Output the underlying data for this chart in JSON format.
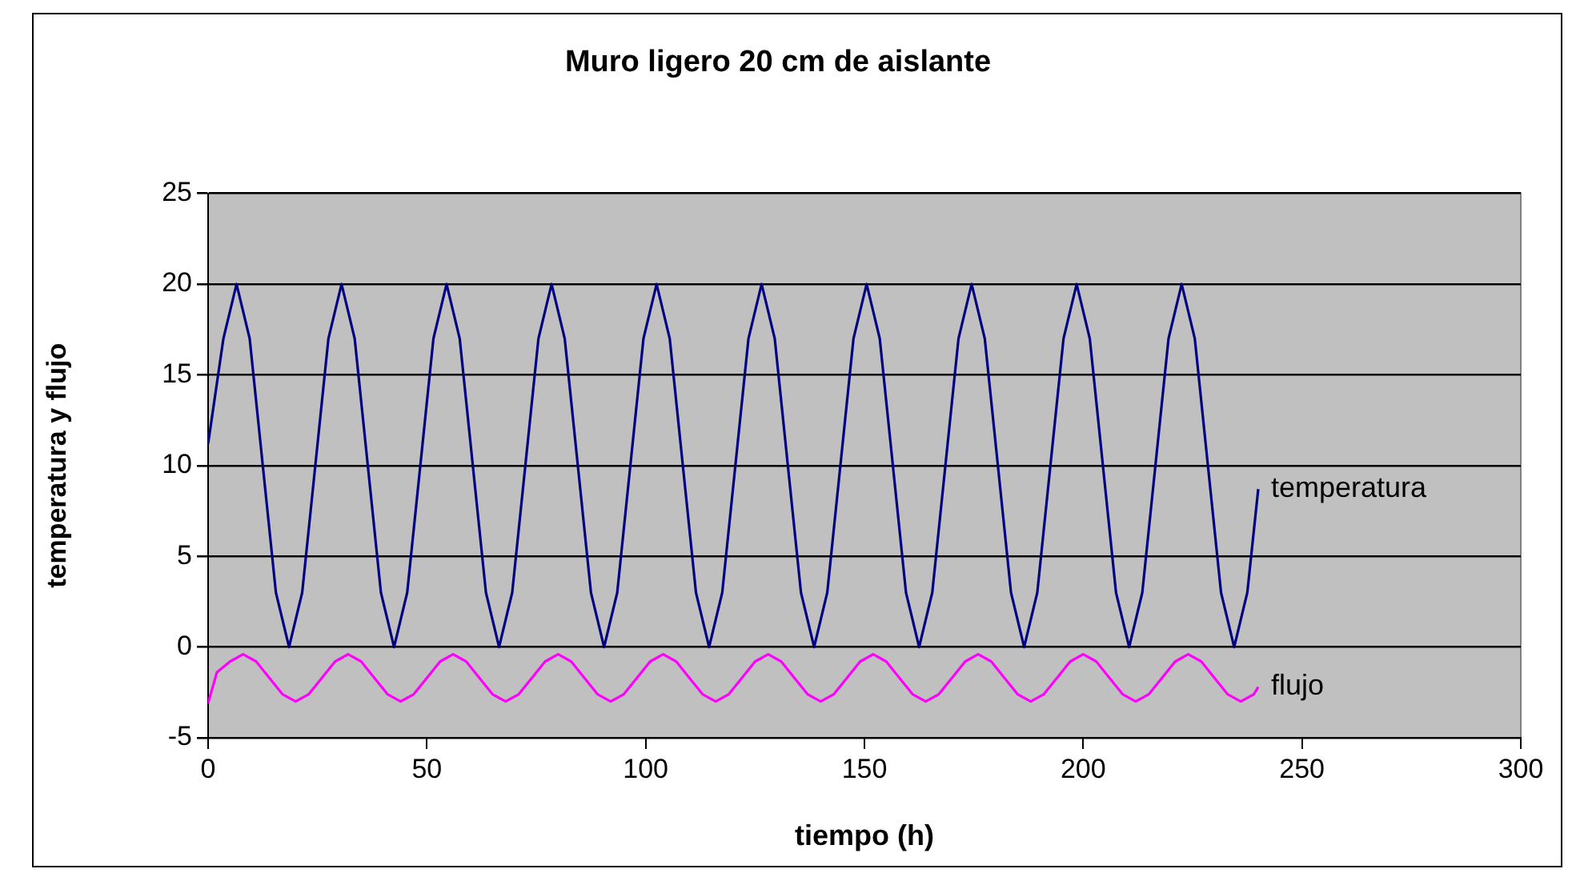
{
  "chart_data": {
    "type": "line",
    "title": "Muro ligero 20 cm de aislante",
    "xlabel": "tiempo (h)",
    "ylabel": "temperatura y flujo",
    "xlim": [
      0,
      300
    ],
    "xticks": [
      0,
      50,
      100,
      150,
      200,
      250,
      300
    ],
    "ylim": [
      -5,
      25
    ],
    "yticks": [
      -5,
      0,
      5,
      10,
      15,
      20,
      25
    ],
    "grid": "y",
    "legend": false,
    "marker": "none",
    "line_style": "solid",
    "series": [
      {
        "name": "temperatura",
        "color": "#000080",
        "x": [
          0,
          3.5,
          6.5,
          9.5,
          12.5,
          15.5,
          18.5,
          21.5,
          24.5,
          27.5,
          30.5,
          33.5,
          36.5,
          39.5,
          42.5,
          45.5,
          48.5,
          51.5,
          54.5,
          57.5,
          60.5,
          63.5,
          66.5,
          69.5,
          72.5,
          75.5,
          78.5,
          81.5,
          84.5,
          87.5,
          90.5,
          93.5,
          96.5,
          99.5,
          102.5,
          105.5,
          108.5,
          111.5,
          114.5,
          117.5,
          120.5,
          123.5,
          126.5,
          129.5,
          132.5,
          135.5,
          138.5,
          141.5,
          144.5,
          147.5,
          150.5,
          153.5,
          156.5,
          159.5,
          162.5,
          165.5,
          168.5,
          171.5,
          174.5,
          177.5,
          180.5,
          183.5,
          186.5,
          189.5,
          192.5,
          195.5,
          198.5,
          201.5,
          204.5,
          207.5,
          210.5,
          213.5,
          216.5,
          219.5,
          222.5,
          225.5,
          228.5,
          231.5,
          234.5,
          237.5,
          240
        ],
        "values": [
          11.2,
          17,
          20,
          17,
          10,
          3,
          0,
          3,
          10,
          17,
          20,
          17,
          10,
          3,
          0,
          3,
          10,
          17,
          20,
          17,
          10,
          3,
          0,
          3,
          10,
          17,
          20,
          17,
          10,
          3,
          0,
          3,
          10,
          17,
          20,
          17,
          10,
          3,
          0,
          3,
          10,
          17,
          20,
          17,
          10,
          3,
          0,
          3,
          10,
          17,
          20,
          17,
          10,
          3,
          0,
          3,
          10,
          17,
          20,
          17,
          10,
          3,
          0,
          3,
          10,
          17,
          20,
          17,
          10,
          3,
          0,
          3,
          10,
          17,
          20,
          17,
          10,
          3,
          0,
          3,
          8.7
        ]
      },
      {
        "name": "flujo",
        "color": "#ff00ff",
        "x": [
          0,
          2,
          5,
          8,
          11,
          14,
          17,
          20,
          23,
          26,
          29,
          32,
          35,
          38,
          41,
          44,
          47,
          50,
          53,
          56,
          59,
          62,
          65,
          68,
          71,
          74,
          77,
          80,
          83,
          86,
          89,
          92,
          95,
          98,
          101,
          104,
          107,
          110,
          113,
          116,
          119,
          122,
          125,
          128,
          131,
          134,
          137,
          140,
          143,
          146,
          149,
          152,
          155,
          158,
          161,
          164,
          167,
          170,
          173,
          176,
          179,
          182,
          185,
          188,
          191,
          194,
          197,
          200,
          203,
          206,
          209,
          212,
          215,
          218,
          221,
          224,
          227,
          230,
          233,
          236,
          239,
          240
        ],
        "values": [
          -3.1,
          -1.4,
          -0.8,
          -0.4,
          -0.8,
          -1.7,
          -2.6,
          -3,
          -2.6,
          -1.7,
          -0.8,
          -0.4,
          -0.8,
          -1.7,
          -2.6,
          -3,
          -2.6,
          -1.7,
          -0.8,
          -0.4,
          -0.8,
          -1.7,
          -2.6,
          -3,
          -2.6,
          -1.7,
          -0.8,
          -0.4,
          -0.8,
          -1.7,
          -2.6,
          -3,
          -2.6,
          -1.7,
          -0.8,
          -0.4,
          -0.8,
          -1.7,
          -2.6,
          -3,
          -2.6,
          -1.7,
          -0.8,
          -0.4,
          -0.8,
          -1.7,
          -2.6,
          -3,
          -2.6,
          -1.7,
          -0.8,
          -0.4,
          -0.8,
          -1.7,
          -2.6,
          -3,
          -2.6,
          -1.7,
          -0.8,
          -0.4,
          -0.8,
          -1.7,
          -2.6,
          -3,
          -2.6,
          -1.7,
          -0.8,
          -0.4,
          -0.8,
          -1.7,
          -2.6,
          -3,
          -2.6,
          -1.7,
          -0.8,
          -0.4,
          -0.8,
          -1.7,
          -2.6,
          -3,
          -2.6,
          -2.2
        ]
      }
    ]
  }
}
